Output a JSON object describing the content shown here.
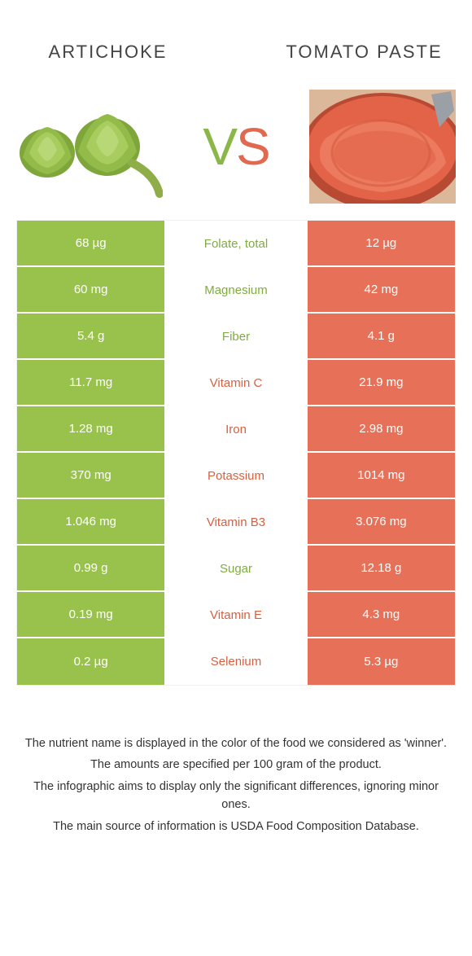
{
  "foods": {
    "left": {
      "name": "ARTICHOKE",
      "color": "#99c24d"
    },
    "right": {
      "name": "TOMATO PASTE",
      "color": "#e77158"
    }
  },
  "vs": {
    "v": "V",
    "s": "S"
  },
  "colors": {
    "left_bg": "#99c24d",
    "right_bg": "#e77158",
    "mid_green_text": "#7fad3e",
    "mid_red_text": "#d8603f",
    "page_bg": "#ffffff"
  },
  "rows": [
    {
      "nutrient": "Folate, total",
      "winner": "left",
      "left": "68 µg",
      "right": "12 µg"
    },
    {
      "nutrient": "Magnesium",
      "winner": "left",
      "left": "60 mg",
      "right": "42 mg"
    },
    {
      "nutrient": "Fiber",
      "winner": "left",
      "left": "5.4 g",
      "right": "4.1 g"
    },
    {
      "nutrient": "Vitamin C",
      "winner": "right",
      "left": "11.7 mg",
      "right": "21.9 mg"
    },
    {
      "nutrient": "Iron",
      "winner": "right",
      "left": "1.28 mg",
      "right": "2.98 mg"
    },
    {
      "nutrient": "Potassium",
      "winner": "right",
      "left": "370 mg",
      "right": "1014 mg"
    },
    {
      "nutrient": "Vitamin B3",
      "winner": "right",
      "left": "1.046 mg",
      "right": "3.076 mg"
    },
    {
      "nutrient": "Sugar",
      "winner": "left",
      "left": "0.99 g",
      "right": "12.18 g"
    },
    {
      "nutrient": "Vitamin E",
      "winner": "right",
      "left": "0.19 mg",
      "right": "4.3 mg"
    },
    {
      "nutrient": "Selenium",
      "winner": "right",
      "left": "0.2 µg",
      "right": "5.3 µg"
    }
  ],
  "footer": {
    "line1": "The nutrient name is displayed in the color of the food we considered as 'winner'.",
    "line2": "The amounts are specified per 100 gram of the product.",
    "line3": "The infographic aims to display only the significant differences, ignoring minor ones.",
    "line4": "The main source of information is USDA Food Composition Database."
  }
}
